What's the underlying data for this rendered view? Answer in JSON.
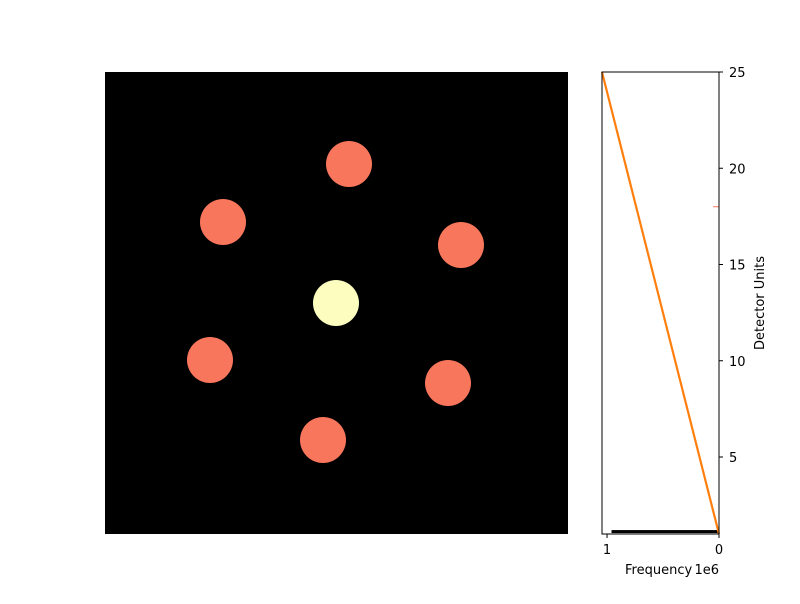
{
  "chart_data": [
    {
      "type": "image",
      "background_color": "#000000",
      "colormap": "magma",
      "spots": [
        {
          "color": "#f8765c"
        },
        {
          "color": "#f8765c"
        },
        {
          "color": "#f8765c"
        },
        {
          "color": "#fcfdbf"
        },
        {
          "color": "#f8765c"
        },
        {
          "color": "#f8765c"
        },
        {
          "color": "#f8765c"
        }
      ],
      "axes_visible": false
    },
    {
      "type": "histogram",
      "orientation": "horizontal",
      "xlabel": "Frequency",
      "x_offset_label": "1e6",
      "x_ticks": [
        "1",
        "0"
      ],
      "x_inverted": true,
      "xlim": [
        1.045,
        0
      ],
      "ylabel": "Detector Units",
      "y_ticks": [
        "5",
        "10",
        "15",
        "20",
        "25"
      ],
      "ylim": [
        1,
        25
      ],
      "yaxis_side": "right",
      "bars": [
        {
          "y_from": 1,
          "y_to": 1.1,
          "frequency": 0.96,
          "color": "#000000"
        }
      ],
      "line": {
        "color": "#ff7f0e",
        "points": [
          [
            1.045,
            25
          ],
          [
            0,
            1
          ]
        ]
      },
      "marker": {
        "y": 18,
        "color": "#f8765c"
      }
    }
  ]
}
